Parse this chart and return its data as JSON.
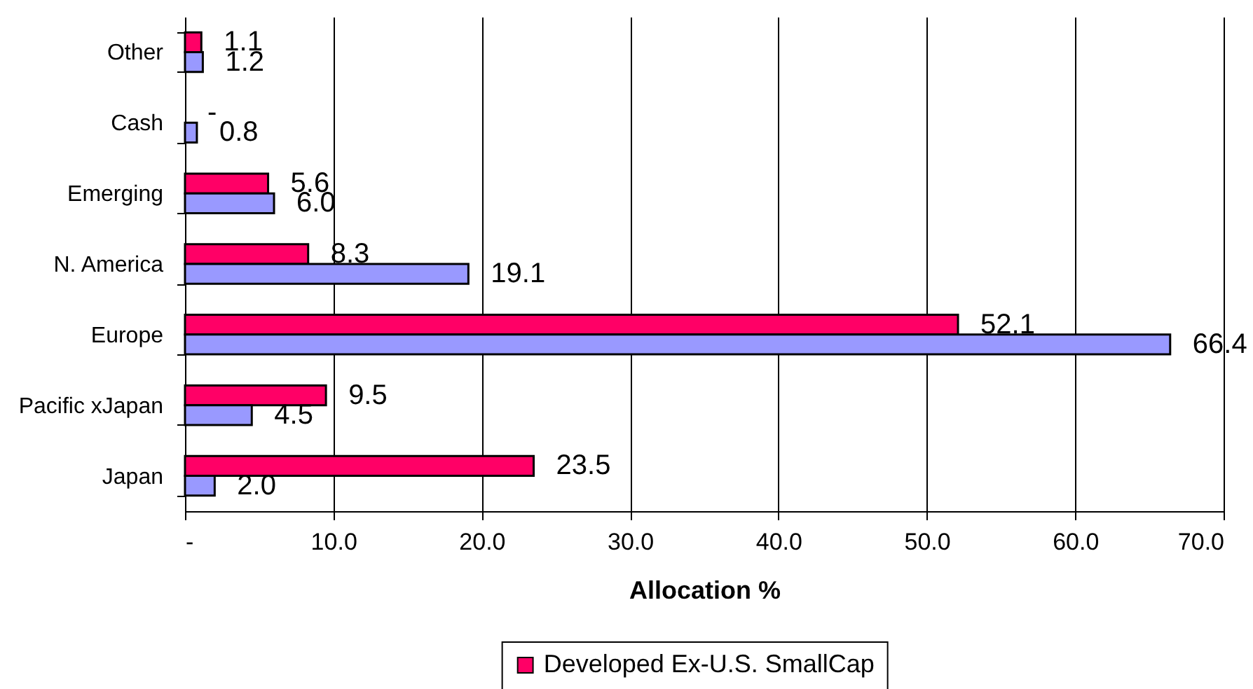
{
  "chart_data": {
    "type": "bar",
    "orientation": "horizontal",
    "categories": [
      "Other",
      "Cash",
      "Emerging",
      "N. America",
      "Europe",
      "Pacific xJapan",
      "Japan"
    ],
    "series": [
      {
        "name": "Developed Ex-U.S. SmallCap",
        "color": "#ff0066",
        "values": [
          1.1,
          0,
          5.6,
          8.3,
          52.1,
          9.5,
          23.5
        ],
        "value_labels": [
          "1.1",
          "-",
          "5.6",
          "8.3",
          "52.1",
          "9.5",
          "23.5"
        ]
      },
      {
        "color": "#9999ff",
        "values": [
          1.2,
          0.8,
          6.0,
          19.1,
          66.4,
          4.5,
          2.0
        ],
        "value_labels": [
          "1.2",
          "0.8",
          "6.0",
          "19.1",
          "66.4",
          "4.5",
          "2.0"
        ]
      }
    ],
    "xlabel": "Allocation %",
    "xlim": [
      0,
      70
    ],
    "xticks": [
      {
        "value": 0,
        "label": "-"
      },
      {
        "value": 10,
        "label": "10.0"
      },
      {
        "value": 20,
        "label": "20.0"
      },
      {
        "value": 30,
        "label": "30.0"
      },
      {
        "value": 40,
        "label": "40.0"
      },
      {
        "value": 50,
        "label": "50.0"
      },
      {
        "value": 60,
        "label": "60.0"
      },
      {
        "value": 70,
        "label": "70.0"
      }
    ],
    "grid": "x",
    "legend": "bottom"
  }
}
